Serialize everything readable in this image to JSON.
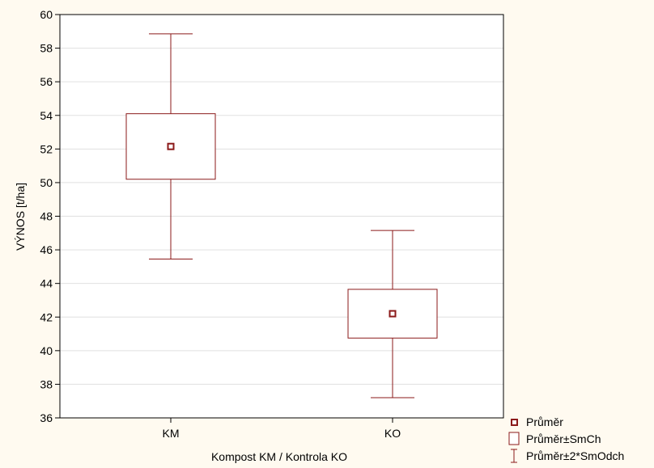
{
  "chart_data": {
    "type": "box",
    "title": "",
    "xlabel": "Kompost KM / Kontrola KO",
    "ylabel": "VÝNOS [t/ha]",
    "ylim": [
      36,
      60
    ],
    "yticks": [
      "36",
      "38",
      "40",
      "42",
      "44",
      "46",
      "48",
      "50",
      "52",
      "54",
      "56",
      "58",
      "60"
    ],
    "grid": true,
    "legend_position": "bottom-right",
    "categories": [
      "KM",
      "KO"
    ],
    "groups": [
      {
        "category": "KM",
        "mean": 52.15,
        "box_low": 50.2,
        "box_high": 54.1,
        "whisker_low": 45.45,
        "whisker_high": 58.85
      },
      {
        "category": "KO",
        "mean": 42.2,
        "box_low": 40.75,
        "box_high": 43.65,
        "whisker_low": 37.2,
        "whisker_high": 47.15
      }
    ],
    "legend": {
      "mean": "Průměr",
      "box": "Průměr±SmCh",
      "whisker": "Průměr±2*SmOdch"
    },
    "colors": {
      "series": "#8b1a1a",
      "background": "#fffaf0",
      "plot_background": "#ffffff",
      "grid": "#e0e0e0",
      "axis": "#000000"
    }
  }
}
